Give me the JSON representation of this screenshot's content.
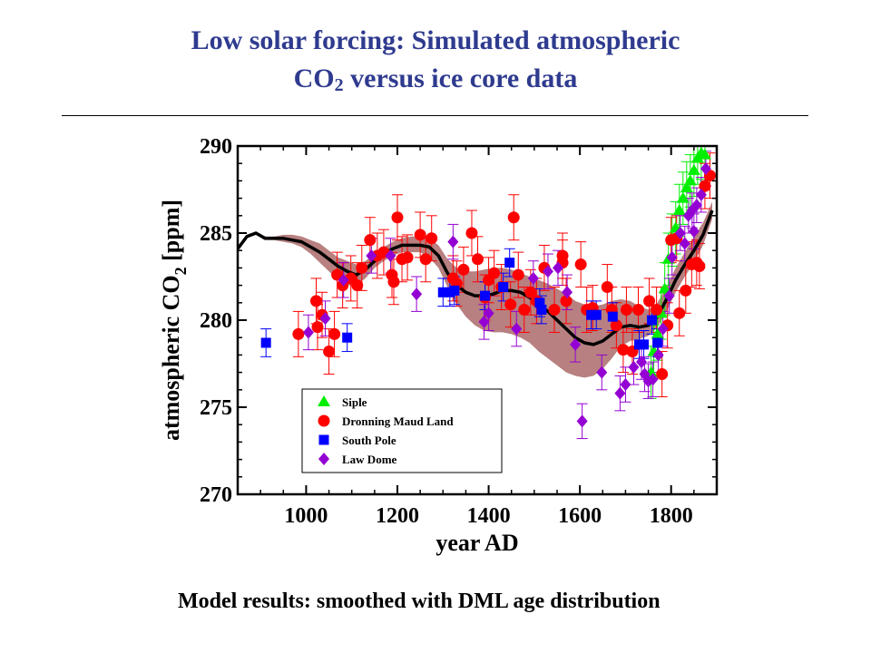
{
  "title": {
    "line1": "Low solar forcing: Simulated atmospheric",
    "line2_pre": "CO",
    "line2_sub": "2",
    "line2_post": " versus ice core data"
  },
  "footer": "Model results: smoothed with DML age distribution",
  "colors": {
    "title": "#2f3b8f",
    "siple": "#00ee00",
    "dml": "#ff0000",
    "south_pole": "#0000ff",
    "law_dome": "#9400d3",
    "model_band": "#b88080",
    "model_line": "#000000"
  },
  "chart_data": {
    "type": "scatter",
    "title": "",
    "xlabel": "year AD",
    "ylabel_pre": "atmospheric CO",
    "ylabel_sub": "2",
    "ylabel_post": " [ppm]",
    "xlim": [
      850,
      1900
    ],
    "ylim": [
      270,
      290
    ],
    "xticks": [
      1000,
      1200,
      1400,
      1600,
      1800
    ],
    "yticks": [
      270,
      275,
      280,
      285,
      290
    ],
    "grid": false,
    "legend_position": "lower-center",
    "legend": [
      {
        "name": "Siple",
        "marker": "triangle",
        "color": "#00ee00"
      },
      {
        "name": "Dronning Maud Land",
        "marker": "circle",
        "color": "#ff0000"
      },
      {
        "name": "South Pole",
        "marker": "square",
        "color": "#0000ff"
      },
      {
        "name": "Law Dome",
        "marker": "diamond",
        "color": "#9400d3"
      }
    ],
    "model": {
      "name": "",
      "x": [
        850,
        870,
        890,
        910,
        930,
        950,
        970,
        990,
        1010,
        1030,
        1050,
        1070,
        1090,
        1110,
        1130,
        1150,
        1170,
        1190,
        1210,
        1230,
        1250,
        1270,
        1290,
        1310,
        1330,
        1350,
        1370,
        1390,
        1410,
        1430,
        1450,
        1470,
        1490,
        1510,
        1530,
        1550,
        1570,
        1590,
        1610,
        1630,
        1650,
        1670,
        1690,
        1710,
        1730,
        1750,
        1770,
        1790,
        1810,
        1830,
        1850,
        1870,
        1890
      ],
      "y": [
        284.1,
        284.8,
        285.0,
        284.7,
        284.7,
        284.7,
        284.6,
        284.5,
        284.2,
        283.9,
        283.5,
        283.1,
        282.8,
        282.6,
        282.9,
        283.4,
        283.8,
        284.1,
        284.3,
        284.3,
        284.3,
        284.2,
        283.7,
        282.7,
        282.0,
        281.6,
        281.4,
        281.4,
        281.5,
        281.7,
        281.7,
        281.6,
        281.3,
        280.9,
        280.5,
        280.0,
        279.5,
        279.0,
        278.7,
        278.6,
        278.8,
        279.2,
        279.6,
        279.7,
        279.6,
        279.7,
        280.2,
        281.2,
        282.3,
        283.2,
        284.0,
        284.9,
        286.3
      ],
      "low": [
        284.0,
        284.7,
        284.9,
        284.6,
        284.6,
        284.5,
        284.4,
        284.2,
        283.8,
        283.3,
        282.8,
        282.3,
        282.0,
        282.0,
        282.4,
        283.0,
        283.4,
        283.7,
        283.9,
        283.9,
        283.9,
        283.6,
        283.0,
        281.9,
        280.9,
        280.2,
        279.7,
        279.4,
        279.3,
        279.3,
        279.2,
        279.0,
        278.7,
        278.2,
        277.8,
        277.4,
        277.0,
        276.8,
        276.7,
        276.8,
        277.2,
        277.8,
        278.5,
        278.8,
        278.9,
        279.1,
        279.6,
        280.5,
        281.6,
        282.5,
        283.3,
        284.3,
        285.8
      ],
      "high": [
        284.2,
        284.9,
        285.1,
        284.8,
        284.8,
        284.9,
        284.9,
        284.8,
        284.6,
        284.4,
        284.0,
        283.6,
        283.4,
        283.2,
        283.4,
        283.8,
        284.2,
        284.5,
        284.7,
        284.8,
        284.8,
        284.7,
        284.3,
        283.5,
        283.0,
        282.8,
        282.8,
        282.9,
        283.0,
        283.0,
        282.9,
        282.7,
        282.5,
        282.3,
        282.1,
        281.8,
        281.5,
        281.1,
        280.9,
        280.8,
        280.9,
        281.1,
        281.2,
        281.1,
        280.8,
        280.6,
        281.0,
        281.9,
        283.0,
        283.9,
        284.8,
        285.6,
        286.8
      ]
    },
    "series": [
      {
        "name": "Siple",
        "marker": "triangle",
        "points": [
          {
            "x": 1756,
            "y": 277.0,
            "err": 1.5
          },
          {
            "x": 1762,
            "y": 278.2,
            "err": 1.5
          },
          {
            "x": 1770,
            "y": 279.2,
            "err": 1.5
          },
          {
            "x": 1778,
            "y": 280.4,
            "err": 1.5
          },
          {
            "x": 1786,
            "y": 281.8,
            "err": 1.5
          },
          {
            "x": 1794,
            "y": 283.5,
            "err": 1.5
          },
          {
            "x": 1802,
            "y": 284.6,
            "err": 1.5
          },
          {
            "x": 1810,
            "y": 285.3,
            "err": 1.5
          },
          {
            "x": 1818,
            "y": 286.3,
            "err": 1.5
          },
          {
            "x": 1826,
            "y": 287.0,
            "err": 1.5
          },
          {
            "x": 1834,
            "y": 287.6,
            "err": 1.5
          },
          {
            "x": 1842,
            "y": 288.0,
            "err": 1.5
          },
          {
            "x": 1850,
            "y": 288.6,
            "err": 1.5
          },
          {
            "x": 1858,
            "y": 289.3,
            "err": 1.5
          },
          {
            "x": 1866,
            "y": 289.6,
            "err": 1.5
          },
          {
            "x": 1874,
            "y": 289.5,
            "err": 1.5
          }
        ]
      },
      {
        "name": "Dronning Maud Land",
        "marker": "circle",
        "points": [
          {
            "x": 983,
            "y": 279.2,
            "err": 1.3
          },
          {
            "x": 1022,
            "y": 281.1,
            "err": 1.3
          },
          {
            "x": 1025,
            "y": 279.6,
            "err": 1.3
          },
          {
            "x": 1035,
            "y": 280.3,
            "err": 1.3
          },
          {
            "x": 1050,
            "y": 278.2,
            "err": 1.3
          },
          {
            "x": 1062,
            "y": 279.2,
            "err": 1.3
          },
          {
            "x": 1068,
            "y": 282.6,
            "err": 1.3
          },
          {
            "x": 1080,
            "y": 282.0,
            "err": 1.3
          },
          {
            "x": 1098,
            "y": 282.4,
            "err": 1.3
          },
          {
            "x": 1112,
            "y": 282.0,
            "err": 1.3
          },
          {
            "x": 1122,
            "y": 283.0,
            "err": 1.3
          },
          {
            "x": 1140,
            "y": 284.6,
            "err": 1.3
          },
          {
            "x": 1156,
            "y": 283.7,
            "err": 1.3
          },
          {
            "x": 1170,
            "y": 283.9,
            "err": 1.3
          },
          {
            "x": 1188,
            "y": 282.6,
            "err": 1.3
          },
          {
            "x": 1192,
            "y": 282.2,
            "err": 1.3
          },
          {
            "x": 1200,
            "y": 285.9,
            "err": 1.3
          },
          {
            "x": 1210,
            "y": 283.5,
            "err": 1.3
          },
          {
            "x": 1222,
            "y": 283.6,
            "err": 1.3
          },
          {
            "x": 1250,
            "y": 284.9,
            "err": 1.3
          },
          {
            "x": 1262,
            "y": 283.5,
            "err": 1.3
          },
          {
            "x": 1275,
            "y": 284.7,
            "err": 1.3
          },
          {
            "x": 1322,
            "y": 282.4,
            "err": 1.3
          },
          {
            "x": 1330,
            "y": 282.1,
            "err": 1.3
          },
          {
            "x": 1345,
            "y": 282.9,
            "err": 1.3
          },
          {
            "x": 1363,
            "y": 285.0,
            "err": 1.3
          },
          {
            "x": 1376,
            "y": 283.5,
            "err": 1.3
          },
          {
            "x": 1392,
            "y": 281.3,
            "err": 1.3
          },
          {
            "x": 1400,
            "y": 282.3,
            "err": 1.3
          },
          {
            "x": 1412,
            "y": 282.7,
            "err": 1.3
          },
          {
            "x": 1428,
            "y": 281.9,
            "err": 1.3
          },
          {
            "x": 1448,
            "y": 280.9,
            "err": 1.3
          },
          {
            "x": 1455,
            "y": 285.9,
            "err": 1.3
          },
          {
            "x": 1465,
            "y": 282.6,
            "err": 1.3
          },
          {
            "x": 1478,
            "y": 280.6,
            "err": 1.3
          },
          {
            "x": 1492,
            "y": 281.6,
            "err": 1.3
          },
          {
            "x": 1505,
            "y": 281.1,
            "err": 1.3
          },
          {
            "x": 1522,
            "y": 283.0,
            "err": 1.3
          },
          {
            "x": 1544,
            "y": 280.6,
            "err": 1.3
          },
          {
            "x": 1562,
            "y": 283.7,
            "err": 1.3
          },
          {
            "x": 1562,
            "y": 283.3,
            "err": 1.3
          },
          {
            "x": 1570,
            "y": 281.1,
            "err": 1.3
          },
          {
            "x": 1602,
            "y": 283.2,
            "err": 1.3
          },
          {
            "x": 1615,
            "y": 280.6,
            "err": 1.3
          },
          {
            "x": 1628,
            "y": 280.7,
            "err": 1.3
          },
          {
            "x": 1660,
            "y": 281.9,
            "err": 1.3
          },
          {
            "x": 1670,
            "y": 280.6,
            "err": 1.3
          },
          {
            "x": 1680,
            "y": 279.7,
            "err": 1.3
          },
          {
            "x": 1695,
            "y": 278.3,
            "err": 1.3
          },
          {
            "x": 1702,
            "y": 280.6,
            "err": 1.3
          },
          {
            "x": 1715,
            "y": 278.2,
            "err": 1.3
          },
          {
            "x": 1728,
            "y": 280.6,
            "err": 1.3
          },
          {
            "x": 1752,
            "y": 281.1,
            "err": 1.3
          },
          {
            "x": 1768,
            "y": 280.6,
            "err": 1.3
          },
          {
            "x": 1780,
            "y": 276.9,
            "err": 1.3
          },
          {
            "x": 1792,
            "y": 279.7,
            "err": 1.3
          },
          {
            "x": 1800,
            "y": 284.6,
            "err": 1.3
          },
          {
            "x": 1812,
            "y": 284.7,
            "err": 1.3
          },
          {
            "x": 1818,
            "y": 280.4,
            "err": 1.3
          },
          {
            "x": 1832,
            "y": 281.7,
            "err": 1.3
          },
          {
            "x": 1845,
            "y": 283.2,
            "err": 1.3
          },
          {
            "x": 1856,
            "y": 283.3,
            "err": 1.3
          },
          {
            "x": 1862,
            "y": 283.1,
            "err": 1.3
          },
          {
            "x": 1874,
            "y": 287.7,
            "err": 1.3
          },
          {
            "x": 1885,
            "y": 288.3,
            "err": 1.3
          }
        ]
      },
      {
        "name": "South Pole",
        "marker": "square",
        "points": [
          {
            "x": 912,
            "y": 278.7,
            "err": 0.8
          },
          {
            "x": 1090,
            "y": 279.0,
            "err": 0.8
          },
          {
            "x": 1300,
            "y": 281.6,
            "err": 0.8
          },
          {
            "x": 1315,
            "y": 281.6,
            "err": 0.8
          },
          {
            "x": 1325,
            "y": 281.7,
            "err": 0.8
          },
          {
            "x": 1392,
            "y": 281.4,
            "err": 0.8
          },
          {
            "x": 1432,
            "y": 281.9,
            "err": 0.8
          },
          {
            "x": 1446,
            "y": 283.3,
            "err": 0.8
          },
          {
            "x": 1512,
            "y": 281.0,
            "err": 0.8
          },
          {
            "x": 1516,
            "y": 280.6,
            "err": 0.8
          },
          {
            "x": 1625,
            "y": 280.3,
            "err": 0.8
          },
          {
            "x": 1636,
            "y": 280.3,
            "err": 0.8
          },
          {
            "x": 1672,
            "y": 280.2,
            "err": 0.8
          },
          {
            "x": 1730,
            "y": 278.6,
            "err": 0.8
          },
          {
            "x": 1740,
            "y": 278.6,
            "err": 0.8
          },
          {
            "x": 1758,
            "y": 280.0,
            "err": 0.8
          },
          {
            "x": 1770,
            "y": 278.7,
            "err": 0.8
          }
        ]
      },
      {
        "name": "Law Dome",
        "marker": "diamond",
        "points": [
          {
            "x": 1005,
            "y": 279.3,
            "err": 1.0
          },
          {
            "x": 1042,
            "y": 280.1,
            "err": 1.0
          },
          {
            "x": 1082,
            "y": 282.3,
            "err": 1.0
          },
          {
            "x": 1143,
            "y": 283.7,
            "err": 1.0
          },
          {
            "x": 1185,
            "y": 283.7,
            "err": 1.0
          },
          {
            "x": 1242,
            "y": 281.5,
            "err": 1.0
          },
          {
            "x": 1322,
            "y": 284.5,
            "err": 1.0
          },
          {
            "x": 1390,
            "y": 279.9,
            "err": 1.0
          },
          {
            "x": 1400,
            "y": 280.4,
            "err": 1.0
          },
          {
            "x": 1461,
            "y": 279.5,
            "err": 1.0
          },
          {
            "x": 1498,
            "y": 282.4,
            "err": 1.0
          },
          {
            "x": 1530,
            "y": 282.8,
            "err": 1.0
          },
          {
            "x": 1552,
            "y": 283.0,
            "err": 1.0
          },
          {
            "x": 1572,
            "y": 281.6,
            "err": 1.0
          },
          {
            "x": 1590,
            "y": 278.6,
            "err": 1.0
          },
          {
            "x": 1605,
            "y": 274.2,
            "err": 1.0
          },
          {
            "x": 1648,
            "y": 277.0,
            "err": 1.0
          },
          {
            "x": 1688,
            "y": 275.8,
            "err": 1.0
          },
          {
            "x": 1700,
            "y": 276.3,
            "err": 1.0
          },
          {
            "x": 1718,
            "y": 277.3,
            "err": 1.0
          },
          {
            "x": 1735,
            "y": 277.6,
            "err": 1.0
          },
          {
            "x": 1742,
            "y": 276.9,
            "err": 1.0
          },
          {
            "x": 1750,
            "y": 276.5,
            "err": 1.0
          },
          {
            "x": 1760,
            "y": 276.6,
            "err": 1.0
          },
          {
            "x": 1772,
            "y": 278.0,
            "err": 1.0
          },
          {
            "x": 1782,
            "y": 279.5,
            "err": 1.0
          },
          {
            "x": 1796,
            "y": 281.4,
            "err": 1.0
          },
          {
            "x": 1802,
            "y": 283.6,
            "err": 1.0
          },
          {
            "x": 1820,
            "y": 285.0,
            "err": 1.0
          },
          {
            "x": 1830,
            "y": 284.4,
            "err": 1.0
          },
          {
            "x": 1838,
            "y": 286.0,
            "err": 1.0
          },
          {
            "x": 1846,
            "y": 286.3,
            "err": 1.0
          },
          {
            "x": 1850,
            "y": 285.1,
            "err": 1.0
          },
          {
            "x": 1856,
            "y": 286.6,
            "err": 1.0
          },
          {
            "x": 1866,
            "y": 287.2,
            "err": 1.0
          },
          {
            "x": 1876,
            "y": 288.7,
            "err": 1.0
          }
        ]
      }
    ]
  }
}
